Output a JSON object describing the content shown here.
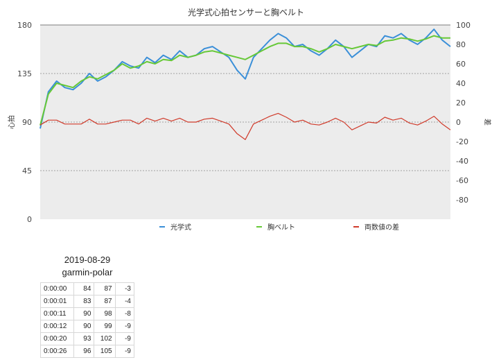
{
  "chart_data": {
    "type": "line",
    "title": "光学式心拍センサーと胸ベルト",
    "ylabel_left": "心拍",
    "ylabel_right": "差",
    "ylim_left": [
      0,
      180
    ],
    "yticks_left": [
      0,
      45,
      90,
      135,
      180
    ],
    "ylim_right": [
      -100,
      100
    ],
    "yticks_right": [
      100,
      80,
      60,
      40,
      20,
      0,
      -20,
      -40,
      -60,
      -80
    ],
    "grid": true,
    "legend_position": "bottom",
    "x": [
      0,
      0.02,
      0.04,
      0.06,
      0.08,
      0.1,
      0.12,
      0.14,
      0.16,
      0.18,
      0.2,
      0.22,
      0.24,
      0.26,
      0.28,
      0.3,
      0.32,
      0.34,
      0.36,
      0.38,
      0.4,
      0.42,
      0.44,
      0.46,
      0.48,
      0.5,
      0.52,
      0.54,
      0.56,
      0.58,
      0.6,
      0.62,
      0.64,
      0.66,
      0.68,
      0.7,
      0.72,
      0.74,
      0.76,
      0.78,
      0.8,
      0.82,
      0.84,
      0.86,
      0.88,
      0.9,
      0.92,
      0.94,
      0.96,
      0.98,
      1.0
    ],
    "series": [
      {
        "name": "光学式",
        "axis": "left",
        "color": "#3a8fd8",
        "values": [
          84,
          118,
          128,
          122,
          120,
          126,
          135,
          128,
          132,
          138,
          146,
          142,
          140,
          150,
          145,
          152,
          148,
          156,
          150,
          152,
          158,
          160,
          155,
          150,
          138,
          130,
          150,
          158,
          166,
          172,
          168,
          160,
          162,
          156,
          152,
          158,
          166,
          160,
          150,
          156,
          162,
          160,
          170,
          168,
          172,
          166,
          162,
          168,
          176,
          166,
          160
        ]
      },
      {
        "name": "胸ベルト",
        "axis": "left",
        "color": "#66c837",
        "values": [
          87,
          116,
          126,
          124,
          122,
          128,
          132,
          130,
          134,
          138,
          144,
          140,
          142,
          146,
          144,
          148,
          147,
          152,
          150,
          152,
          155,
          156,
          154,
          152,
          150,
          148,
          152,
          156,
          160,
          163,
          163,
          160,
          160,
          158,
          155,
          158,
          162,
          160,
          158,
          160,
          162,
          161,
          165,
          166,
          168,
          167,
          165,
          167,
          170,
          168,
          168
        ]
      },
      {
        "name": "両数値の差",
        "axis": "right",
        "color": "#d03a2a",
        "values": [
          -3,
          2,
          2,
          -2,
          -2,
          -2,
          3,
          -2,
          -2,
          0,
          2,
          2,
          -2,
          4,
          1,
          4,
          1,
          4,
          0,
          0,
          3,
          4,
          1,
          -2,
          -12,
          -18,
          -2,
          2,
          6,
          9,
          5,
          0,
          2,
          -2,
          -3,
          0,
          4,
          0,
          -8,
          -4,
          0,
          -1,
          5,
          2,
          4,
          -1,
          -3,
          1,
          6,
          -2,
          -8
        ]
      }
    ]
  },
  "table": {
    "date": "2019-08-29",
    "name": "garmin-polar",
    "rows": [
      [
        "0:00:00",
        "84",
        "87",
        "-3"
      ],
      [
        "0:00:01",
        "83",
        "87",
        "-4"
      ],
      [
        "0:00:11",
        "90",
        "98",
        "-8"
      ],
      [
        "0:00:12",
        "90",
        "99",
        "-9"
      ],
      [
        "0:00:20",
        "93",
        "102",
        "-9"
      ],
      [
        "0:00:26",
        "96",
        "105",
        "-9"
      ]
    ]
  }
}
